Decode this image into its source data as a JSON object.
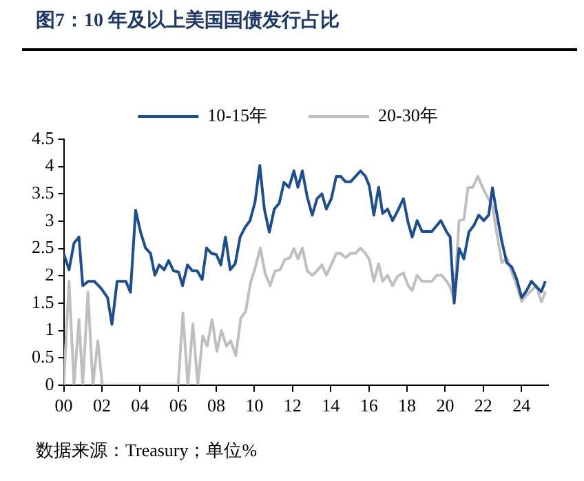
{
  "chart_data": {
    "type": "line",
    "title": "图7：10 年及以上美国国债发行占比",
    "annotations": [
      "数据来源：Treasury；单位%"
    ],
    "xlim": [
      2000,
      2025.4
    ],
    "xticks": [
      {
        "value": 2000,
        "label": "00"
      },
      {
        "value": 2002,
        "label": "02"
      },
      {
        "value": 2004,
        "label": "04"
      },
      {
        "value": 2006,
        "label": "06"
      },
      {
        "value": 2008,
        "label": "08"
      },
      {
        "value": 2010,
        "label": "10"
      },
      {
        "value": 2012,
        "label": "12"
      },
      {
        "value": 2014,
        "label": "14"
      },
      {
        "value": 2016,
        "label": "16"
      },
      {
        "value": 2018,
        "label": "18"
      },
      {
        "value": 2020,
        "label": "20"
      },
      {
        "value": 2022,
        "label": "22"
      },
      {
        "value": 2024,
        "label": "24"
      }
    ],
    "ylim": [
      0,
      4.5
    ],
    "yticks": [
      0,
      0.5,
      1,
      1.5,
      2,
      2.5,
      3,
      3.5,
      4,
      4.5
    ],
    "grid": false,
    "legend": "top",
    "series": [
      {
        "name": "10-15年",
        "color": "#1f4e8c",
        "x": [
          2000,
          2000.28,
          2000.54,
          2000.8,
          2001,
          2001.3,
          2001.6,
          2001.96,
          2002.3,
          2002.53,
          2002.8,
          2003.26,
          2003.5,
          2003.77,
          2004.03,
          2004.29,
          2004.55,
          2004.78,
          2005.01,
          2005.27,
          2005.5,
          2005.76,
          2006.02,
          2006.23,
          2006.49,
          2006.74,
          2007,
          2007.26,
          2007.49,
          2007.75,
          2008,
          2008.24,
          2008.48,
          2008.73,
          2008.99,
          2009.25,
          2009.5,
          2009.77,
          2010.03,
          2010.28,
          2010.52,
          2010.78,
          2011.04,
          2011.3,
          2011.55,
          2011.81,
          2012.07,
          2012.28,
          2012.51,
          2012.77,
          2013.03,
          2013.28,
          2013.54,
          2013.77,
          2014.03,
          2014.29,
          2014.52,
          2014.78,
          2015.04,
          2015.3,
          2015.56,
          2015.82,
          2016.02,
          2016.26,
          2016.51,
          2016.72,
          2016.98,
          2017.24,
          2017.5,
          2017.81,
          2018.06,
          2018.27,
          2018.53,
          2018.79,
          2019.3,
          2019.77,
          2020.08,
          2020.26,
          2020.47,
          2020.73,
          2020.98,
          2021.24,
          2021.5,
          2021.76,
          2022.02,
          2022.28,
          2022.48,
          2022.72,
          2022.97,
          2023.23,
          2023.49,
          2023.75,
          2024.01,
          2024.27,
          2024.52,
          2024.78,
          2025.04,
          2025.25
        ],
        "values": [
          2.41,
          2.11,
          2.6,
          2.71,
          1.82,
          1.9,
          1.9,
          1.77,
          1.6,
          1.11,
          1.9,
          1.9,
          1.7,
          3.2,
          2.8,
          2.51,
          2.41,
          2.01,
          2.2,
          2.11,
          2.28,
          2.09,
          2.07,
          1.82,
          2.2,
          2.09,
          2.09,
          1.93,
          2.51,
          2.41,
          2.39,
          2.2,
          2.71,
          2.11,
          2.22,
          2.71,
          2.88,
          3.01,
          3.35,
          4.02,
          3.22,
          2.8,
          3.22,
          3.33,
          3.71,
          3.62,
          3.92,
          3.62,
          3.92,
          3.44,
          3.11,
          3.41,
          3.5,
          3.22,
          3.41,
          3.82,
          3.82,
          3.72,
          3.72,
          3.82,
          3.92,
          3.82,
          3.65,
          3.11,
          3.62,
          3.14,
          3.22,
          3.01,
          3.18,
          3.41,
          2.97,
          2.71,
          3.01,
          2.81,
          2.81,
          3.01,
          2.8,
          2.71,
          1.5,
          2.5,
          2.31,
          2.8,
          2.92,
          3.11,
          3.01,
          3.11,
          3.61,
          3.11,
          2.63,
          2.24,
          2.16,
          1.94,
          1.6,
          1.73,
          1.9,
          1.8,
          1.71,
          1.9
        ]
      },
      {
        "name": "20-30年",
        "color": "#bfbfbf",
        "x": [
          2000,
          2000.28,
          2000.54,
          2000.8,
          2001,
          2001.27,
          2001.53,
          2001.79,
          2002.02,
          2006,
          2006.25,
          2006.51,
          2006.77,
          2007.03,
          2007.29,
          2007.52,
          2007.78,
          2008.03,
          2008.27,
          2008.53,
          2008.76,
          2009.02,
          2009.28,
          2009.54,
          2009.79,
          2010.05,
          2010.31,
          2010.57,
          2010.82,
          2011.08,
          2011.34,
          2011.6,
          2011.86,
          2012.07,
          2012.28,
          2012.51,
          2012.77,
          2013.03,
          2013.28,
          2013.54,
          2013.77,
          2014.03,
          2014.29,
          2014.52,
          2014.78,
          2015.04,
          2015.3,
          2015.56,
          2015.82,
          2016.02,
          2016.26,
          2016.51,
          2016.72,
          2016.98,
          2017.24,
          2017.5,
          2017.81,
          2018.06,
          2018.27,
          2018.53,
          2018.79,
          2019.3,
          2019.56,
          2019.82,
          2020.08,
          2020.26,
          2020.47,
          2020.73,
          2020.98,
          2021.19,
          2021.45,
          2021.71,
          2021.97,
          2022.22,
          2022.48,
          2022.72,
          2022.97,
          2023.23,
          2023.49,
          2023.75,
          2024.01,
          2024.27,
          2024.52,
          2024.78,
          2025.04,
          2025.25
        ],
        "values": [
          0,
          1.9,
          0,
          1.2,
          0,
          1.7,
          0,
          0.81,
          0,
          0,
          1.32,
          0,
          1.12,
          0,
          0.9,
          0.71,
          1.2,
          0.62,
          1.0,
          0.71,
          0.81,
          0.54,
          1.22,
          1.35,
          1.86,
          2.16,
          2.51,
          2.03,
          1.82,
          2.09,
          2.11,
          2.3,
          2.33,
          2.5,
          2.31,
          2.51,
          2.09,
          2.01,
          2.09,
          2.2,
          2.01,
          2.2,
          2.41,
          2.41,
          2.33,
          2.41,
          2.41,
          2.51,
          2.41,
          2.3,
          1.9,
          2.22,
          1.9,
          2.01,
          1.82,
          1.99,
          2.05,
          1.82,
          1.73,
          2.01,
          1.9,
          1.9,
          2.01,
          2.01,
          1.9,
          1.8,
          1.56,
          3.01,
          3.03,
          3.61,
          3.62,
          3.82,
          3.61,
          3.44,
          3.27,
          2.75,
          2.24,
          2.33,
          2.07,
          1.82,
          1.53,
          1.65,
          1.73,
          1.82,
          1.52,
          1.71
        ]
      }
    ]
  }
}
